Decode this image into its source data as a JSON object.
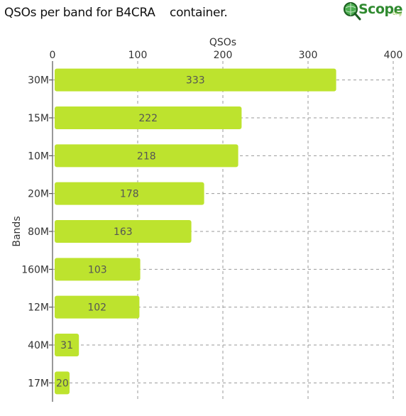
{
  "title": "QSOs per band for B4CRA    container.",
  "logo": {
    "text": "Scope",
    "suffix": "org"
  },
  "chart_data": {
    "type": "bar",
    "orientation": "horizontal",
    "categories": [
      "30M",
      "15M",
      "10M",
      "20M",
      "80M",
      "160M",
      "12M",
      "40M",
      "17M"
    ],
    "values": [
      333,
      222,
      218,
      178,
      163,
      103,
      102,
      31,
      20
    ],
    "xlabel": "QSOs",
    "ylabel": "Bands",
    "xlim": [
      0,
      400
    ],
    "xticks": [
      0,
      100,
      200,
      300,
      400
    ],
    "grid": "dashed vertical and horizontal",
    "x_axis_position": "top",
    "bar_color": "#bde32e"
  }
}
